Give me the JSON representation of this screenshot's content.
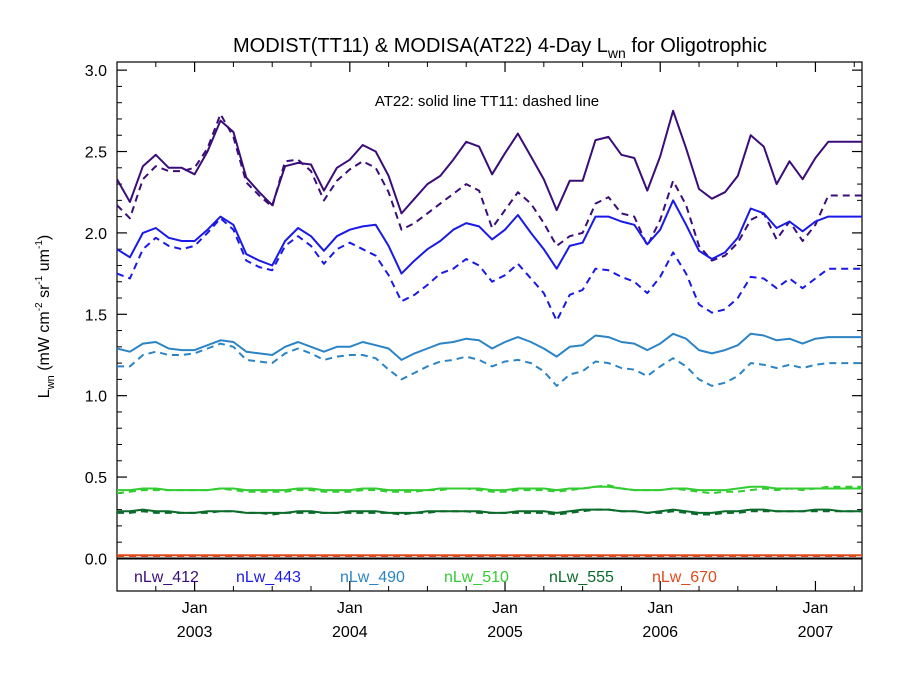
{
  "chart_data": {
    "type": "line",
    "title": {
      "main": "MODIST(TT11) & MODISA(AT22) 4-Day L",
      "sub": "wn",
      "tail": " for Oligotrophic"
    },
    "ylabel": {
      "parts": [
        {
          "text": "L",
          "style": "normal"
        },
        {
          "text": "wn",
          "style": "sub"
        },
        {
          "text": " (mW cm",
          "style": "normal"
        },
        {
          "text": "-2",
          "style": "sup"
        },
        {
          "text": " sr",
          "style": "normal"
        },
        {
          "text": "-1",
          "style": "sup"
        },
        {
          "text": " um",
          "style": "normal"
        },
        {
          "text": "-1",
          "style": "sup"
        },
        {
          "text": ")",
          "style": "normal"
        }
      ]
    },
    "annotation": "AT22: solid line   TT11: dashed line",
    "xlim": [
      2002.5,
      2007.3
    ],
    "ylim": [
      -0.2,
      3.05
    ],
    "yticks": [
      0.0,
      0.5,
      1.0,
      1.5,
      2.0,
      2.5,
      3.0
    ],
    "ytick_labels": [
      "0.0",
      "0.5",
      "1.0",
      "1.5",
      "2.0",
      "2.5",
      "3.0"
    ],
    "xticks": [
      {
        "x": 2003.0,
        "line1": "Jan",
        "line2": "2003"
      },
      {
        "x": 2004.0,
        "line1": "Jan",
        "line2": "2004"
      },
      {
        "x": 2005.0,
        "line1": "Jan",
        "line2": "2005"
      },
      {
        "x": 2006.0,
        "line1": "Jan",
        "line2": "2006"
      },
      {
        "x": 2007.0,
        "line1": "Jan",
        "line2": "2007"
      }
    ],
    "x": [
      2002.5,
      2002.583,
      2002.667,
      2002.75,
      2002.833,
      2002.917,
      2003.0,
      2003.083,
      2003.167,
      2003.25,
      2003.333,
      2003.417,
      2003.5,
      2003.583,
      2003.667,
      2003.75,
      2003.833,
      2003.917,
      2004.0,
      2004.083,
      2004.167,
      2004.25,
      2004.333,
      2004.417,
      2004.5,
      2004.583,
      2004.667,
      2004.75,
      2004.833,
      2004.917,
      2005.0,
      2005.083,
      2005.167,
      2005.25,
      2005.333,
      2005.417,
      2005.5,
      2005.583,
      2005.667,
      2005.75,
      2005.833,
      2005.917,
      2006.0,
      2006.083,
      2006.167,
      2006.25,
      2006.333,
      2006.417,
      2006.5,
      2006.583,
      2006.667,
      2006.75,
      2006.833,
      2006.917,
      2007.0,
      2007.083,
      2007.167,
      2007.25,
      2007.3
    ],
    "series": [
      {
        "name": "nLw_412",
        "color": "#3b0d78",
        "solid": [
          2.33,
          2.19,
          2.41,
          2.48,
          2.4,
          2.4,
          2.36,
          2.5,
          2.69,
          2.62,
          2.34,
          2.25,
          2.17,
          2.41,
          2.43,
          2.42,
          2.26,
          2.4,
          2.45,
          2.54,
          2.5,
          2.35,
          2.12,
          2.21,
          2.3,
          2.35,
          2.45,
          2.56,
          2.53,
          2.36,
          2.49,
          2.61,
          2.47,
          2.33,
          2.14,
          2.32,
          2.32,
          2.57,
          2.59,
          2.48,
          2.46,
          2.26,
          2.47,
          2.75,
          2.52,
          2.27,
          2.21,
          2.25,
          2.35,
          2.6,
          2.53,
          2.3,
          2.44,
          2.33,
          2.46,
          2.56,
          2.56,
          2.56,
          2.56
        ],
        "dashed": [
          2.17,
          2.09,
          2.33,
          2.41,
          2.38,
          2.38,
          2.4,
          2.52,
          2.73,
          2.59,
          2.31,
          2.23,
          2.16,
          2.44,
          2.45,
          2.38,
          2.2,
          2.32,
          2.39,
          2.44,
          2.4,
          2.25,
          2.02,
          2.06,
          2.12,
          2.18,
          2.24,
          2.3,
          2.26,
          2.03,
          2.14,
          2.25,
          2.18,
          2.06,
          1.92,
          1.98,
          2.0,
          2.18,
          2.22,
          2.12,
          2.1,
          1.92,
          2.08,
          2.32,
          2.17,
          1.92,
          1.83,
          1.86,
          1.94,
          2.08,
          2.12,
          1.96,
          2.07,
          1.95,
          2.05,
          2.23,
          2.23,
          2.23,
          2.23
        ]
      },
      {
        "name": "nLw_443",
        "color": "#1a1ae6",
        "solid": [
          1.9,
          1.85,
          2.0,
          2.03,
          1.97,
          1.95,
          1.95,
          2.02,
          2.1,
          2.05,
          1.87,
          1.83,
          1.8,
          1.95,
          2.03,
          1.98,
          1.89,
          1.98,
          2.02,
          2.04,
          2.05,
          1.92,
          1.75,
          1.83,
          1.9,
          1.95,
          2.02,
          2.06,
          2.04,
          1.96,
          2.02,
          2.11,
          2.0,
          1.9,
          1.78,
          1.92,
          1.94,
          2.1,
          2.1,
          2.07,
          2.05,
          1.93,
          2.02,
          2.2,
          2.05,
          1.89,
          1.84,
          1.88,
          1.97,
          2.15,
          2.12,
          2.03,
          2.07,
          2.01,
          2.07,
          2.1,
          2.1,
          2.1,
          2.1
        ],
        "dashed": [
          1.75,
          1.72,
          1.9,
          1.97,
          1.92,
          1.9,
          1.92,
          2.0,
          2.09,
          2.02,
          1.83,
          1.79,
          1.77,
          1.92,
          1.98,
          1.92,
          1.81,
          1.9,
          1.94,
          1.9,
          1.86,
          1.74,
          1.58,
          1.62,
          1.68,
          1.75,
          1.78,
          1.84,
          1.8,
          1.7,
          1.74,
          1.81,
          1.72,
          1.63,
          1.46,
          1.62,
          1.65,
          1.78,
          1.77,
          1.73,
          1.7,
          1.63,
          1.73,
          1.88,
          1.75,
          1.56,
          1.51,
          1.53,
          1.6,
          1.73,
          1.72,
          1.66,
          1.72,
          1.66,
          1.72,
          1.78,
          1.78,
          1.78,
          1.78
        ]
      },
      {
        "name": "nLw_490",
        "color": "#2c84c4",
        "solid": [
          1.29,
          1.27,
          1.32,
          1.33,
          1.29,
          1.28,
          1.28,
          1.31,
          1.34,
          1.33,
          1.27,
          1.26,
          1.25,
          1.3,
          1.33,
          1.3,
          1.27,
          1.3,
          1.3,
          1.33,
          1.31,
          1.29,
          1.22,
          1.26,
          1.29,
          1.32,
          1.33,
          1.35,
          1.34,
          1.29,
          1.33,
          1.36,
          1.33,
          1.29,
          1.24,
          1.3,
          1.31,
          1.37,
          1.36,
          1.33,
          1.32,
          1.28,
          1.32,
          1.38,
          1.35,
          1.28,
          1.26,
          1.28,
          1.31,
          1.38,
          1.37,
          1.34,
          1.35,
          1.32,
          1.35,
          1.36,
          1.36,
          1.36,
          1.36
        ],
        "dashed": [
          1.18,
          1.18,
          1.25,
          1.27,
          1.25,
          1.25,
          1.26,
          1.29,
          1.32,
          1.3,
          1.22,
          1.21,
          1.2,
          1.26,
          1.29,
          1.26,
          1.22,
          1.24,
          1.25,
          1.25,
          1.23,
          1.16,
          1.1,
          1.14,
          1.18,
          1.21,
          1.22,
          1.24,
          1.22,
          1.18,
          1.21,
          1.22,
          1.2,
          1.15,
          1.06,
          1.13,
          1.15,
          1.21,
          1.2,
          1.17,
          1.16,
          1.12,
          1.18,
          1.23,
          1.18,
          1.1,
          1.06,
          1.08,
          1.12,
          1.2,
          1.19,
          1.17,
          1.19,
          1.17,
          1.19,
          1.2,
          1.2,
          1.2,
          1.2
        ]
      },
      {
        "name": "nLw_510",
        "color": "#33cc33",
        "solid": [
          0.42,
          0.42,
          0.43,
          0.43,
          0.42,
          0.42,
          0.42,
          0.42,
          0.43,
          0.43,
          0.42,
          0.42,
          0.42,
          0.42,
          0.43,
          0.43,
          0.42,
          0.42,
          0.42,
          0.43,
          0.43,
          0.42,
          0.42,
          0.42,
          0.42,
          0.43,
          0.43,
          0.43,
          0.43,
          0.42,
          0.42,
          0.43,
          0.43,
          0.43,
          0.42,
          0.43,
          0.43,
          0.44,
          0.44,
          0.43,
          0.42,
          0.42,
          0.42,
          0.43,
          0.43,
          0.42,
          0.42,
          0.42,
          0.43,
          0.44,
          0.44,
          0.43,
          0.43,
          0.43,
          0.43,
          0.43,
          0.43,
          0.43,
          0.43
        ],
        "dashed": [
          0.4,
          0.41,
          0.42,
          0.42,
          0.42,
          0.42,
          0.42,
          0.42,
          0.43,
          0.42,
          0.41,
          0.41,
          0.41,
          0.41,
          0.42,
          0.42,
          0.41,
          0.41,
          0.41,
          0.42,
          0.42,
          0.41,
          0.41,
          0.41,
          0.42,
          0.42,
          0.43,
          0.43,
          0.42,
          0.41,
          0.41,
          0.42,
          0.42,
          0.42,
          0.41,
          0.42,
          0.43,
          0.44,
          0.45,
          0.43,
          0.42,
          0.42,
          0.42,
          0.43,
          0.42,
          0.41,
          0.4,
          0.41,
          0.41,
          0.42,
          0.43,
          0.42,
          0.43,
          0.42,
          0.43,
          0.44,
          0.44,
          0.44,
          0.44
        ]
      },
      {
        "name": "nLw_555",
        "color": "#0b6b2b",
        "solid": [
          0.29,
          0.29,
          0.3,
          0.29,
          0.29,
          0.28,
          0.28,
          0.29,
          0.29,
          0.29,
          0.28,
          0.28,
          0.28,
          0.28,
          0.29,
          0.29,
          0.28,
          0.28,
          0.29,
          0.29,
          0.29,
          0.28,
          0.28,
          0.28,
          0.29,
          0.29,
          0.29,
          0.29,
          0.29,
          0.28,
          0.28,
          0.29,
          0.29,
          0.29,
          0.28,
          0.29,
          0.3,
          0.3,
          0.3,
          0.29,
          0.29,
          0.28,
          0.29,
          0.3,
          0.29,
          0.28,
          0.28,
          0.29,
          0.29,
          0.3,
          0.3,
          0.29,
          0.29,
          0.29,
          0.3,
          0.3,
          0.29,
          0.29,
          0.29
        ],
        "dashed": [
          0.28,
          0.28,
          0.29,
          0.28,
          0.28,
          0.28,
          0.28,
          0.28,
          0.29,
          0.29,
          0.28,
          0.28,
          0.27,
          0.28,
          0.28,
          0.28,
          0.28,
          0.28,
          0.28,
          0.28,
          0.28,
          0.28,
          0.27,
          0.28,
          0.28,
          0.29,
          0.29,
          0.29,
          0.28,
          0.28,
          0.28,
          0.28,
          0.28,
          0.28,
          0.27,
          0.28,
          0.29,
          0.3,
          0.3,
          0.29,
          0.29,
          0.28,
          0.28,
          0.29,
          0.28,
          0.27,
          0.27,
          0.28,
          0.28,
          0.29,
          0.29,
          0.29,
          0.29,
          0.29,
          0.29,
          0.29,
          0.29,
          0.29,
          0.29
        ]
      },
      {
        "name": "nLw_670",
        "color": "#e04a1a",
        "solid": [
          0.02,
          0.02,
          0.02,
          0.02,
          0.02,
          0.02,
          0.02,
          0.02,
          0.02,
          0.02,
          0.02,
          0.02,
          0.02,
          0.02,
          0.02,
          0.02,
          0.02,
          0.02,
          0.02,
          0.02,
          0.02,
          0.02,
          0.02,
          0.02,
          0.02,
          0.02,
          0.02,
          0.02,
          0.02,
          0.02,
          0.02,
          0.02,
          0.02,
          0.02,
          0.02,
          0.02,
          0.02,
          0.02,
          0.02,
          0.02,
          0.02,
          0.02,
          0.02,
          0.02,
          0.02,
          0.02,
          0.02,
          0.02,
          0.02,
          0.02,
          0.02,
          0.02,
          0.02,
          0.02,
          0.02,
          0.02,
          0.02,
          0.02,
          0.02
        ],
        "dashed": [
          0.015,
          0.015,
          0.015,
          0.015,
          0.015,
          0.015,
          0.015,
          0.015,
          0.015,
          0.015,
          0.015,
          0.015,
          0.015,
          0.015,
          0.015,
          0.015,
          0.015,
          0.015,
          0.015,
          0.015,
          0.015,
          0.015,
          0.015,
          0.015,
          0.015,
          0.015,
          0.015,
          0.015,
          0.015,
          0.015,
          0.015,
          0.015,
          0.015,
          0.015,
          0.015,
          0.015,
          0.015,
          0.015,
          0.015,
          0.015,
          0.015,
          0.015,
          0.015,
          0.015,
          0.015,
          0.015,
          0.015,
          0.015,
          0.015,
          0.015,
          0.015,
          0.015,
          0.015,
          0.015,
          0.015,
          0.015,
          0.015,
          0.015,
          0.015
        ]
      }
    ],
    "reference_line": {
      "y": 0.0,
      "color": "#000000"
    },
    "legend_position": "bottom"
  }
}
